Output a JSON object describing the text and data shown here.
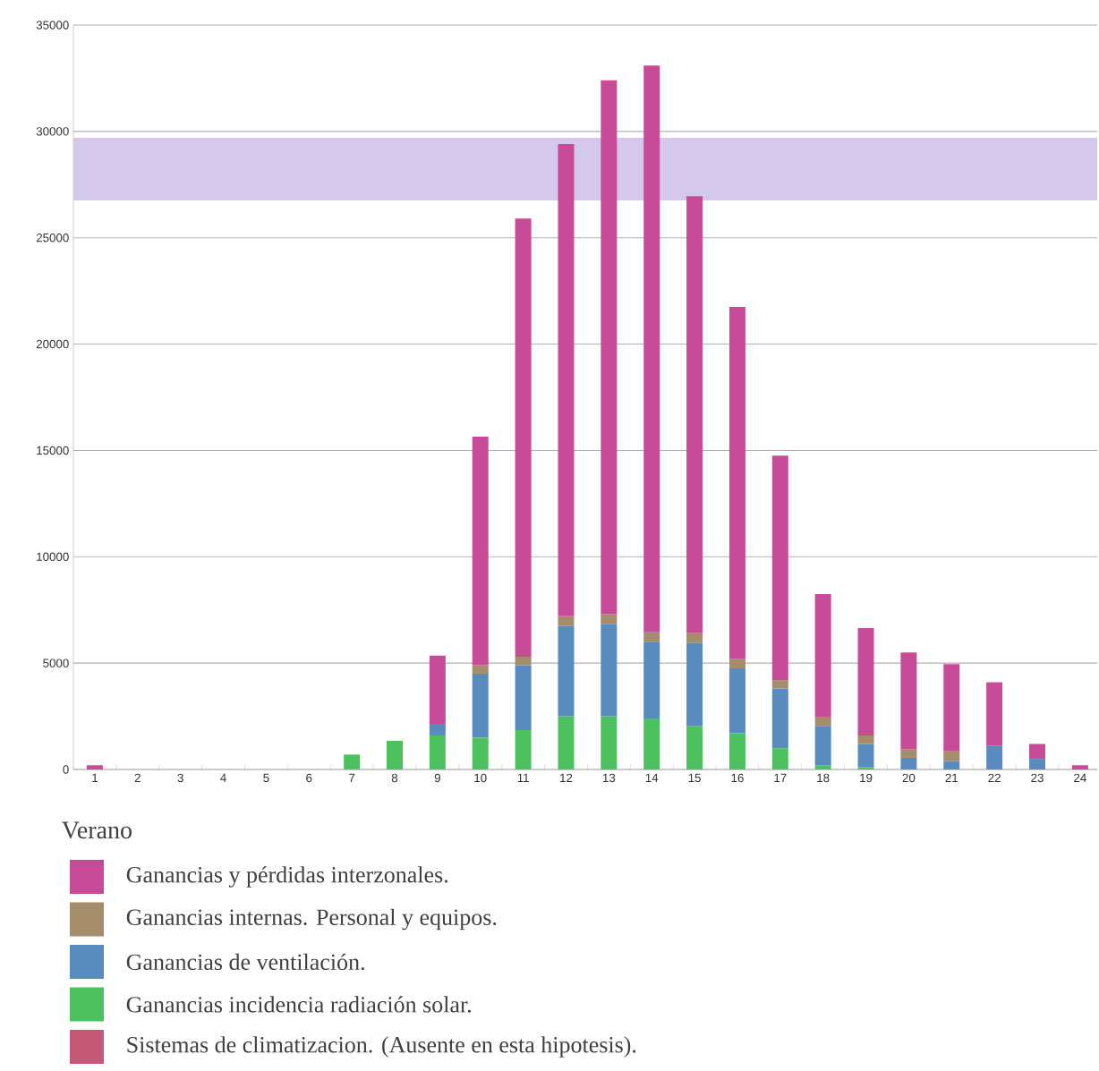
{
  "chart_data": {
    "type": "bar",
    "stacked": true,
    "categories": [
      "1",
      "2",
      "3",
      "4",
      "5",
      "6",
      "7",
      "8",
      "9",
      "10",
      "11",
      "12",
      "13",
      "14",
      "15",
      "16",
      "17",
      "18",
      "19",
      "20",
      "21",
      "22",
      "23",
      "24"
    ],
    "series": [
      {
        "name": "Ganancias incidencia radiación solar.",
        "color": "#4dc160",
        "values": [
          null,
          null,
          null,
          null,
          null,
          null,
          700,
          1350,
          1600,
          1500,
          1850,
          2500,
          2500,
          2400,
          2050,
          1700,
          1000,
          200,
          100,
          null,
          null,
          null,
          null,
          null
        ]
      },
      {
        "name": "Ganancias de ventilación.",
        "color": "#5a8bbf",
        "values": [
          null,
          null,
          null,
          null,
          null,
          null,
          null,
          null,
          550,
          3000,
          3050,
          4250,
          4350,
          3600,
          3900,
          3050,
          2800,
          1850,
          1100,
          550,
          400,
          1100,
          500,
          null
        ]
      },
      {
        "name": "Ganancias internas. Personal y equipos.",
        "color": "#a58c6a",
        "values": [
          null,
          null,
          null,
          null,
          null,
          null,
          null,
          null,
          null,
          400,
          400,
          450,
          450,
          450,
          450,
          450,
          400,
          400,
          400,
          400,
          450,
          null,
          null,
          null
        ]
      },
      {
        "name": "Ganancias y pérdidas interzonales.",
        "color": "#c84b9a",
        "values": [
          200,
          null,
          null,
          null,
          null,
          null,
          null,
          null,
          3200,
          10750,
          20600,
          22200,
          25100,
          26650,
          20550,
          16550,
          10550,
          5800,
          5050,
          4550,
          4100,
          3000,
          700,
          200
        ]
      },
      {
        "name": "Sistemas de climatizacion. (Ausente en esta hipotesis).",
        "color": "#c45a78",
        "values": [
          null,
          null,
          null,
          null,
          null,
          null,
          null,
          null,
          null,
          null,
          null,
          null,
          null,
          null,
          null,
          null,
          null,
          null,
          null,
          null,
          null,
          null,
          null,
          null
        ]
      }
    ],
    "ylim": [
      0,
      35000
    ],
    "yticks": [
      0,
      5000,
      10000,
      15000,
      20000,
      25000,
      30000,
      35000
    ],
    "grid": "y",
    "legend": "bottom",
    "legend_title": "Verano",
    "bands": [
      {
        "axis": "y",
        "from": 26750,
        "to": 29700,
        "color": "#d4c9ea"
      }
    ]
  }
}
